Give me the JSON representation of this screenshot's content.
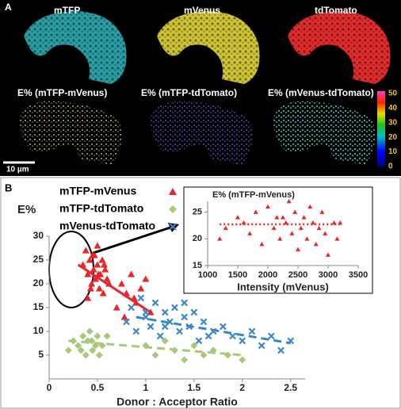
{
  "panel_a": {
    "panel_label": "A",
    "images": [
      {
        "label": "mTFP"
      },
      {
        "label": "mVenus"
      },
      {
        "label": "tdTomato"
      }
    ],
    "fret_maps": [
      {
        "label": "E% (mTFP-mVenus)"
      },
      {
        "label": "E% (mTFP-tdTomato)"
      },
      {
        "label": "E% (mVenus-tdTomato)"
      }
    ],
    "colorbar": {
      "ticks": [
        0,
        10,
        20,
        30,
        40,
        50
      ]
    },
    "scale_bar": "10 µm"
  },
  "panel_b": {
    "panel_label": "B"
  },
  "chart_data": [
    {
      "type": "scatter",
      "ylabel": "E%",
      "xlabel": "Donor : Acceptor Ratio",
      "xlim": [
        0,
        2.65
      ],
      "ylim": [
        0,
        30
      ],
      "xticks": [
        0,
        0.5,
        1,
        1.5,
        2,
        2.5
      ],
      "yticks": [
        5,
        10,
        15,
        20,
        25,
        30
      ],
      "series": [
        {
          "name": "mTFP-mVenus",
          "color": "#e8262a",
          "marker": "triangle",
          "x": [
            0.35,
            0.38,
            0.4,
            0.42,
            0.44,
            0.45,
            0.46,
            0.48,
            0.5,
            0.5,
            0.52,
            0.53,
            0.55,
            0.56,
            0.58,
            0.6,
            0.62,
            0.4,
            0.47,
            0.51,
            0.43,
            0.57,
            0.75,
            0.8,
            0.85,
            0.9,
            0.95,
            1.0,
            1.05,
            0.7,
            0.88,
            0.78
          ],
          "values": [
            24,
            27,
            22,
            25,
            20,
            26,
            23,
            21,
            28,
            24,
            19,
            22,
            25,
            18,
            23,
            21,
            20,
            17,
            26,
            22,
            19,
            24,
            20,
            18,
            22,
            16,
            19,
            21,
            14,
            15,
            17,
            13
          ],
          "trendline": {
            "x": [
              0.3,
              1.05
            ],
            "values": [
              24,
              14
            ],
            "dash": "none"
          }
        },
        {
          "name": "mTFP-tdTomato",
          "color": "#a9c97a",
          "marker": "diamond",
          "x": [
            0.2,
            0.25,
            0.3,
            0.35,
            0.38,
            0.4,
            0.42,
            0.45,
            0.48,
            0.5,
            0.52,
            0.55,
            0.33,
            0.44,
            0.6,
            1.0,
            1.1,
            1.2,
            1.3,
            1.4,
            1.5,
            1.6,
            1.7,
            1.85,
            2.0
          ],
          "values": [
            6,
            8,
            7,
            9,
            5,
            8,
            10,
            6,
            7,
            9,
            5,
            7,
            6,
            8,
            9,
            7,
            5,
            8,
            6,
            4,
            7,
            5,
            6,
            5,
            4
          ],
          "trendline": {
            "x": [
              0.2,
              2.0
            ],
            "values": [
              8,
              5
            ],
            "dash": "10 6"
          }
        },
        {
          "name": "mVenus-tdTomato",
          "color": "#3a87c8",
          "marker": "cross",
          "x": [
            0.8,
            0.85,
            0.9,
            0.95,
            1.0,
            1.05,
            1.1,
            1.15,
            1.2,
            1.25,
            1.3,
            1.35,
            1.4,
            1.45,
            1.5,
            1.55,
            1.6,
            1.7,
            1.8,
            1.9,
            2.0,
            2.1,
            2.2,
            2.3,
            2.4,
            2.5,
            1.0,
            1.2,
            1.4,
            1.65
          ],
          "values": [
            12,
            15,
            10,
            17,
            13,
            11,
            16,
            9,
            14,
            12,
            15,
            10,
            13,
            11,
            14,
            8,
            12,
            10,
            11,
            9,
            8,
            10,
            7,
            9,
            6,
            8,
            14,
            11,
            16,
            9
          ],
          "trendline": {
            "x": [
              0.9,
              2.5
            ],
            "values": [
              13,
              7.5
            ],
            "dash": "10 6"
          }
        }
      ]
    },
    {
      "type": "scatter",
      "title": "E% (mTFP-mVenus)",
      "xlabel": "Intensity (mVenus)",
      "xlim": [
        1000,
        3500
      ],
      "ylim": [
        15,
        27
      ],
      "xticks": [
        1000,
        1500,
        2000,
        2500,
        3000,
        3500
      ],
      "yticks": [
        15,
        20,
        25
      ],
      "series": [
        {
          "color": "#e8262a",
          "marker": "triangle",
          "x": [
            1200,
            1300,
            1500,
            1600,
            1700,
            1800,
            1900,
            2000,
            2100,
            2150,
            2200,
            2300,
            2350,
            2400,
            2450,
            2500,
            2550,
            2600,
            2650,
            2700,
            2750,
            2800,
            2850,
            2900,
            2950,
            3000,
            3100,
            3150,
            3200,
            2250
          ],
          "values": [
            20,
            22,
            24,
            23,
            21,
            25,
            19,
            26,
            22,
            24,
            20,
            23,
            27,
            21,
            25,
            18,
            22,
            24,
            20,
            26,
            23,
            19,
            22,
            25,
            21,
            17,
            23,
            20,
            23,
            24
          ],
          "trendline": {
            "x": [
              1200,
              3200
            ],
            "values": [
              22.7,
              22.7
            ],
            "dash": "2 3"
          }
        }
      ]
    }
  ]
}
